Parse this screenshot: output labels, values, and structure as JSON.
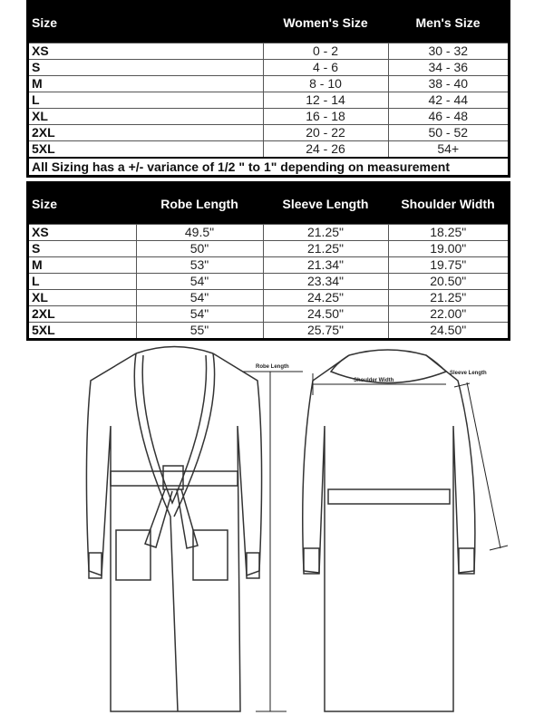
{
  "general_table": {
    "headers": [
      "Size",
      "Women's Size",
      "Men's Size"
    ],
    "rows": [
      [
        "XS",
        "0 - 2",
        "30 - 32"
      ],
      [
        "S",
        "4 - 6",
        "34 - 36"
      ],
      [
        "M",
        "8 - 10",
        "38 - 40"
      ],
      [
        "L",
        "12 - 14",
        "42 - 44"
      ],
      [
        "XL",
        "16 - 18",
        "46 - 48"
      ],
      [
        "2XL",
        "20 - 22",
        "50 - 52"
      ],
      [
        "5XL",
        "24 - 26",
        "54+"
      ]
    ],
    "note": "All Sizing has a +/- variance of  1/2 \" to 1\" depending on measurement"
  },
  "measure_table": {
    "headers": [
      "Size",
      "Robe Length",
      "Sleeve Length",
      "Shoulder Width"
    ],
    "rows": [
      [
        "XS",
        "49.5\"",
        "21.25\"",
        "18.25\""
      ],
      [
        "S",
        "50\"",
        "21.25\"",
        "19.00\""
      ],
      [
        "M",
        "53\"",
        "21.34\"",
        "19.75\""
      ],
      [
        "L",
        "54\"",
        "23.34\"",
        "20.50\""
      ],
      [
        "XL",
        "54\"",
        "24.25\"",
        "21.25\""
      ],
      [
        "2XL",
        "54\"",
        "24.50\"",
        "22.00\""
      ],
      [
        "5XL",
        "55\"",
        "25.75\"",
        "24.50\""
      ]
    ]
  },
  "diagram": {
    "robe_length_label": "Robe Length",
    "shoulder_width_label": "Shoulder Width",
    "sleeve_length_label": "Sleeve Length"
  }
}
